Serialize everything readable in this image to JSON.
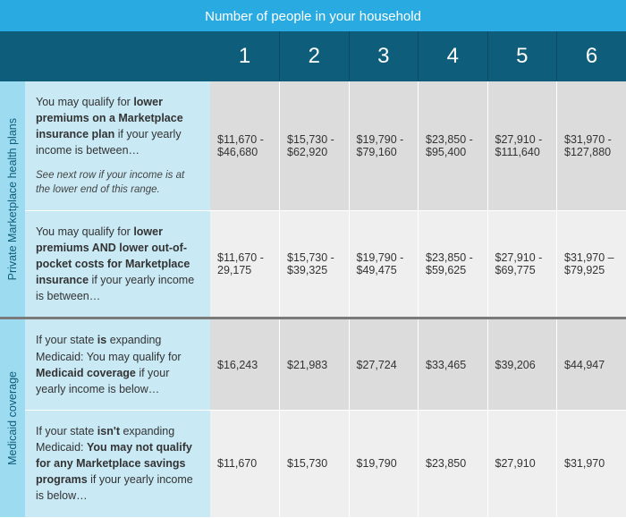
{
  "header": {
    "title": "Number of people in your household",
    "columns": [
      "1",
      "2",
      "3",
      "4",
      "5",
      "6"
    ]
  },
  "sections": [
    {
      "side_label": "Private Marketplace health plans",
      "rows": [
        {
          "desc_html": "You may qualify for <b>lower premiums on a Marketplace insurance plan</b> if your yearly income is between…",
          "note": "See next row if your income is at the lower end of this range.",
          "values": [
            "$11,670 - $46,680",
            "$15,730 - $62,920",
            "$19,790 - $79,160",
            "$23,850 - $95,400",
            "$27,910 - $111,640",
            "$31,970 - $127,880"
          ],
          "shade": "a"
        },
        {
          "desc_html": "You may qualify for <b>lower premiums AND lower out-of-pocket costs for Marketplace insurance</b> if your yearly income is between…",
          "values": [
            "$11,670 - 29,175",
            "$15,730 - $39,325",
            "$19,790 - $49,475",
            "$23,850 - $59,625",
            "$27,910 - $69,775",
            "$31,970 – $79,925"
          ],
          "shade": "b"
        }
      ]
    },
    {
      "side_label": "Medicaid coverage",
      "rows": [
        {
          "desc_html": "If your state <b>is</b> expanding Medicaid: You may qualify for <b>Medicaid coverage</b> if your yearly income is below…",
          "values": [
            "$16,243",
            "$21,983",
            "$27,724",
            "$33,465",
            "$39,206",
            "$44,947"
          ],
          "shade": "a"
        },
        {
          "desc_html": "If your state <b>isn't</b> expanding Medicaid: <b>You may not qualify for any Marketplace savings programs</b> if your yearly income is below…",
          "values": [
            "$11,670",
            "$15,730",
            "$19,790",
            "$23,850",
            "$27,910",
            "$31,970"
          ],
          "shade": "b"
        }
      ]
    }
  ],
  "colors": {
    "top_header_bg": "#29abe2",
    "num_header_bg": "#0e5d7a",
    "side_label_bg": "#9cdbf0",
    "desc_bg": "#c9e9f5",
    "row_a_bg": "#dcdcdc",
    "row_b_bg": "#efefef",
    "sep_color": "#7a7a7a"
  }
}
